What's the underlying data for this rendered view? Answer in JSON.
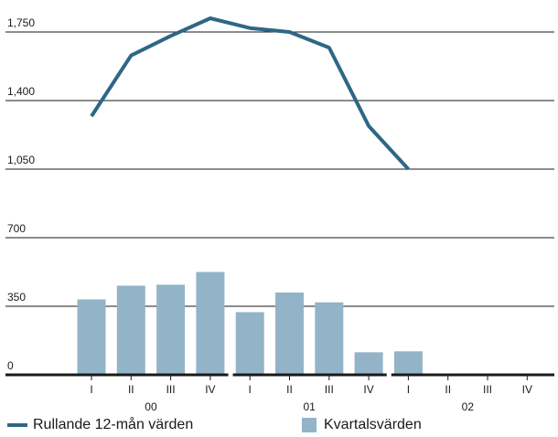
{
  "chart_data": {
    "type": "bar",
    "y_ticks": [
      "0",
      "350",
      "700",
      "1,050",
      "1,400",
      "1,750"
    ],
    "y_tick_values": [
      0,
      350,
      700,
      1050,
      1400,
      1750
    ],
    "ylim": [
      0,
      1850
    ],
    "grid": true,
    "categories": [
      "I",
      "II",
      "III",
      "IV",
      "I",
      "II",
      "III",
      "IV",
      "I",
      "II",
      "III",
      "IV"
    ],
    "years": [
      "00",
      "01",
      "02"
    ],
    "series": [
      {
        "name": "Kvartalsvärden",
        "type": "bar",
        "values": [
          385,
          455,
          460,
          525,
          320,
          420,
          370,
          115,
          120,
          null,
          null,
          null
        ]
      },
      {
        "name": "Rullande 12-mån värden",
        "type": "line",
        "values": [
          1320,
          1630,
          1730,
          1820,
          1770,
          1750,
          1670,
          1270,
          1050,
          null,
          null,
          null
        ]
      }
    ],
    "legend_position": "bottom",
    "colors": {
      "bar": "#93b3c8",
      "line": "#2e6785",
      "axis": "#1a1a1a",
      "grid": "#1a1a1a"
    }
  },
  "legend": {
    "line_label": "Rullande 12-mån värden",
    "bar_label": "Kvartalsvärden"
  }
}
